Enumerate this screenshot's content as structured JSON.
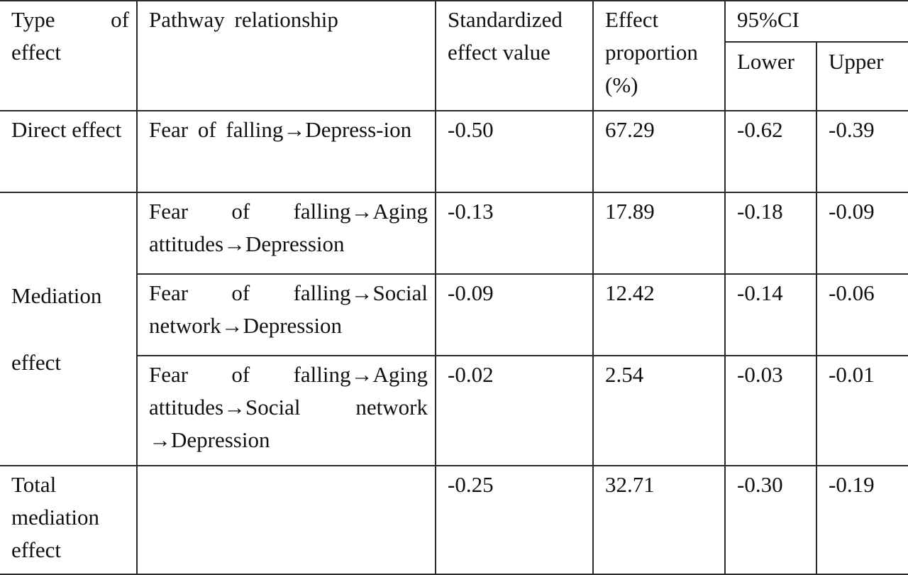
{
  "table": {
    "headers": {
      "type_of_effect": "Type of effect",
      "pathway_relationship": "Pathway relationship",
      "standardized_effect_value": "Standardized effect value",
      "effect_proportion": "Effect proportion (%)",
      "ci_95": "95%CI",
      "lower": "Lower",
      "upper": "Upper"
    },
    "rows": [
      {
        "type": "Direct effect",
        "pathway": "Fear of falling→Depress-ion",
        "std_effect": "-0.50",
        "proportion": "67.29",
        "lower": "-0.62",
        "upper": "-0.39"
      },
      {
        "type": "Mediation effect",
        "pathway": "Fear of falling→Aging attitudes→Depression",
        "std_effect": "-0.13",
        "proportion": "17.89",
        "lower": "-0.18",
        "upper": "-0.09"
      },
      {
        "pathway": "Fear of falling→Social network→Depression",
        "std_effect": "-0.09",
        "proportion": "12.42",
        "lower": "-0.14",
        "upper": "-0.06"
      },
      {
        "pathway": "Fear of falling→Aging attitudes→Social network →Depression",
        "std_effect": "-0.02",
        "proportion": "2.54",
        "lower": "-0.03",
        "upper": "-0.01"
      },
      {
        "type": "Total mediation effect",
        "pathway": "",
        "std_effect": "-0.25",
        "proportion": "32.71",
        "lower": "-0.30",
        "upper": "-0.19"
      }
    ]
  }
}
